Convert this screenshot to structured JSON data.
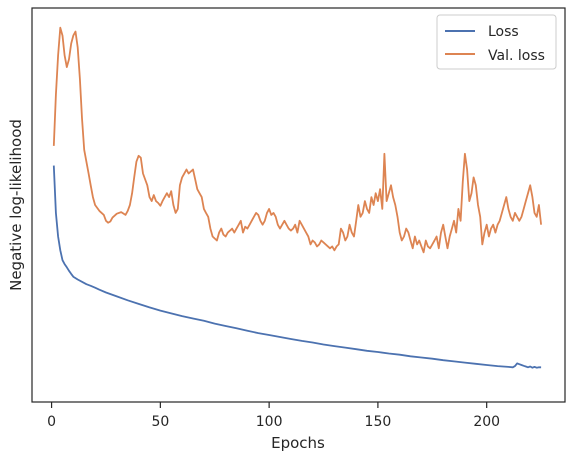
{
  "chart_data": {
    "type": "line",
    "xlabel": "Epochs",
    "ylabel": "Negative log-likelihood",
    "xlim": [
      -9,
      236
    ],
    "ylim": [
      0,
      1
    ],
    "xticks": [
      0,
      50,
      100,
      150,
      200
    ],
    "yticks_shown": false,
    "grid": false,
    "legend_position": "top-right",
    "series": [
      {
        "name": "Loss",
        "color": "#4c72b0",
        "points": [
          [
            1,
            0.6
          ],
          [
            2,
            0.48
          ],
          [
            3,
            0.42
          ],
          [
            4,
            0.385
          ],
          [
            5,
            0.36
          ],
          [
            6,
            0.35
          ],
          [
            7,
            0.342
          ],
          [
            8,
            0.333
          ],
          [
            9,
            0.325
          ],
          [
            10,
            0.318
          ],
          [
            12,
            0.311
          ],
          [
            14,
            0.305
          ],
          [
            16,
            0.299
          ],
          [
            18,
            0.295
          ],
          [
            20,
            0.29
          ],
          [
            22,
            0.285
          ],
          [
            25,
            0.278
          ],
          [
            30,
            0.268
          ],
          [
            35,
            0.258
          ],
          [
            40,
            0.249
          ],
          [
            45,
            0.24
          ],
          [
            50,
            0.232
          ],
          [
            55,
            0.225
          ],
          [
            60,
            0.218
          ],
          [
            65,
            0.212
          ],
          [
            70,
            0.206
          ],
          [
            75,
            0.199
          ],
          [
            80,
            0.193
          ],
          [
            85,
            0.187
          ],
          [
            90,
            0.181
          ],
          [
            95,
            0.175
          ],
          [
            100,
            0.17
          ],
          [
            105,
            0.165
          ],
          [
            110,
            0.16
          ],
          [
            115,
            0.155
          ],
          [
            120,
            0.151
          ],
          [
            125,
            0.146
          ],
          [
            130,
            0.142
          ],
          [
            135,
            0.138
          ],
          [
            140,
            0.134
          ],
          [
            145,
            0.13
          ],
          [
            150,
            0.127
          ],
          [
            155,
            0.123
          ],
          [
            160,
            0.12
          ],
          [
            165,
            0.116
          ],
          [
            170,
            0.113
          ],
          [
            175,
            0.11
          ],
          [
            180,
            0.106
          ],
          [
            185,
            0.103
          ],
          [
            190,
            0.1
          ],
          [
            195,
            0.097
          ],
          [
            200,
            0.094
          ],
          [
            205,
            0.091
          ],
          [
            210,
            0.089
          ],
          [
            212,
            0.088
          ],
          [
            213,
            0.091
          ],
          [
            214,
            0.098
          ],
          [
            215,
            0.096
          ],
          [
            216,
            0.094
          ],
          [
            217,
            0.092
          ],
          [
            218,
            0.09
          ],
          [
            219,
            0.088
          ],
          [
            220,
            0.09
          ],
          [
            221,
            0.087
          ],
          [
            222,
            0.089
          ],
          [
            223,
            0.087
          ],
          [
            224,
            0.088
          ],
          [
            225,
            0.088
          ]
        ]
      },
      {
        "name": "Val. loss",
        "color": "#dd8452",
        "points": [
          [
            1,
            0.65
          ],
          [
            2,
            0.78
          ],
          [
            3,
            0.88
          ],
          [
            4,
            0.95
          ],
          [
            5,
            0.93
          ],
          [
            6,
            0.88
          ],
          [
            7,
            0.85
          ],
          [
            8,
            0.87
          ],
          [
            9,
            0.91
          ],
          [
            10,
            0.93
          ],
          [
            11,
            0.94
          ],
          [
            12,
            0.9
          ],
          [
            13,
            0.82
          ],
          [
            14,
            0.72
          ],
          [
            15,
            0.64
          ],
          [
            16,
            0.61
          ],
          [
            17,
            0.58
          ],
          [
            18,
            0.55
          ],
          [
            19,
            0.52
          ],
          [
            20,
            0.5
          ],
          [
            22,
            0.485
          ],
          [
            24,
            0.475
          ],
          [
            25,
            0.46
          ],
          [
            26,
            0.455
          ],
          [
            27,
            0.458
          ],
          [
            28,
            0.468
          ],
          [
            30,
            0.478
          ],
          [
            32,
            0.482
          ],
          [
            34,
            0.475
          ],
          [
            35,
            0.485
          ],
          [
            36,
            0.5
          ],
          [
            37,
            0.53
          ],
          [
            38,
            0.57
          ],
          [
            39,
            0.61
          ],
          [
            40,
            0.625
          ],
          [
            41,
            0.62
          ],
          [
            42,
            0.58
          ],
          [
            44,
            0.55
          ],
          [
            45,
            0.52
          ],
          [
            46,
            0.51
          ],
          [
            47,
            0.525
          ],
          [
            48,
            0.51
          ],
          [
            49,
            0.505
          ],
          [
            50,
            0.498
          ],
          [
            51,
            0.51
          ],
          [
            52,
            0.52
          ],
          [
            53,
            0.53
          ],
          [
            54,
            0.52
          ],
          [
            55,
            0.535
          ],
          [
            56,
            0.5
          ],
          [
            57,
            0.48
          ],
          [
            58,
            0.49
          ],
          [
            59,
            0.55
          ],
          [
            60,
            0.57
          ],
          [
            61,
            0.58
          ],
          [
            62,
            0.59
          ],
          [
            63,
            0.58
          ],
          [
            64,
            0.585
          ],
          [
            65,
            0.59
          ],
          [
            66,
            0.565
          ],
          [
            67,
            0.54
          ],
          [
            68,
            0.53
          ],
          [
            69,
            0.52
          ],
          [
            70,
            0.49
          ],
          [
            71,
            0.48
          ],
          [
            72,
            0.47
          ],
          [
            73,
            0.44
          ],
          [
            74,
            0.42
          ],
          [
            75,
            0.415
          ],
          [
            76,
            0.41
          ],
          [
            77,
            0.43
          ],
          [
            78,
            0.44
          ],
          [
            79,
            0.425
          ],
          [
            80,
            0.42
          ],
          [
            81,
            0.43
          ],
          [
            82,
            0.435
          ],
          [
            83,
            0.44
          ],
          [
            84,
            0.43
          ],
          [
            85,
            0.44
          ],
          [
            86,
            0.45
          ],
          [
            87,
            0.46
          ],
          [
            88,
            0.43
          ],
          [
            89,
            0.445
          ],
          [
            90,
            0.44
          ],
          [
            91,
            0.45
          ],
          [
            92,
            0.46
          ],
          [
            93,
            0.47
          ],
          [
            94,
            0.48
          ],
          [
            95,
            0.475
          ],
          [
            96,
            0.46
          ],
          [
            97,
            0.45
          ],
          [
            98,
            0.46
          ],
          [
            99,
            0.48
          ],
          [
            100,
            0.49
          ],
          [
            101,
            0.475
          ],
          [
            102,
            0.48
          ],
          [
            103,
            0.47
          ],
          [
            104,
            0.45
          ],
          [
            105,
            0.44
          ],
          [
            106,
            0.45
          ],
          [
            107,
            0.46
          ],
          [
            108,
            0.45
          ],
          [
            109,
            0.44
          ],
          [
            110,
            0.435
          ],
          [
            111,
            0.44
          ],
          [
            112,
            0.45
          ],
          [
            113,
            0.43
          ],
          [
            114,
            0.46
          ],
          [
            115,
            0.45
          ],
          [
            116,
            0.44
          ],
          [
            117,
            0.43
          ],
          [
            118,
            0.42
          ],
          [
            119,
            0.4
          ],
          [
            120,
            0.41
          ],
          [
            121,
            0.405
          ],
          [
            122,
            0.395
          ],
          [
            123,
            0.4
          ],
          [
            124,
            0.41
          ],
          [
            125,
            0.405
          ],
          [
            126,
            0.4
          ],
          [
            127,
            0.395
          ],
          [
            128,
            0.39
          ],
          [
            129,
            0.395
          ],
          [
            130,
            0.385
          ],
          [
            131,
            0.395
          ],
          [
            132,
            0.4
          ],
          [
            133,
            0.44
          ],
          [
            134,
            0.43
          ],
          [
            135,
            0.41
          ],
          [
            136,
            0.42
          ],
          [
            137,
            0.45
          ],
          [
            138,
            0.43
          ],
          [
            139,
            0.42
          ],
          [
            140,
            0.46
          ],
          [
            141,
            0.5
          ],
          [
            142,
            0.47
          ],
          [
            143,
            0.48
          ],
          [
            144,
            0.51
          ],
          [
            145,
            0.49
          ],
          [
            146,
            0.48
          ],
          [
            147,
            0.52
          ],
          [
            148,
            0.5
          ],
          [
            149,
            0.53
          ],
          [
            150,
            0.51
          ],
          [
            151,
            0.54
          ],
          [
            152,
            0.49
          ],
          [
            153,
            0.63
          ],
          [
            154,
            0.51
          ],
          [
            155,
            0.53
          ],
          [
            156,
            0.55
          ],
          [
            157,
            0.52
          ],
          [
            158,
            0.5
          ],
          [
            159,
            0.47
          ],
          [
            160,
            0.43
          ],
          [
            161,
            0.41
          ],
          [
            162,
            0.42
          ],
          [
            163,
            0.44
          ],
          [
            164,
            0.43
          ],
          [
            165,
            0.41
          ],
          [
            166,
            0.39
          ],
          [
            167,
            0.42
          ],
          [
            168,
            0.4
          ],
          [
            169,
            0.41
          ],
          [
            170,
            0.395
          ],
          [
            171,
            0.38
          ],
          [
            172,
            0.41
          ],
          [
            173,
            0.395
          ],
          [
            174,
            0.39
          ],
          [
            175,
            0.4
          ],
          [
            176,
            0.41
          ],
          [
            177,
            0.42
          ],
          [
            178,
            0.39
          ],
          [
            179,
            0.43
          ],
          [
            180,
            0.45
          ],
          [
            181,
            0.42
          ],
          [
            182,
            0.39
          ],
          [
            183,
            0.42
          ],
          [
            184,
            0.44
          ],
          [
            185,
            0.46
          ],
          [
            186,
            0.43
          ],
          [
            187,
            0.49
          ],
          [
            188,
            0.46
          ],
          [
            189,
            0.56
          ],
          [
            190,
            0.63
          ],
          [
            191,
            0.59
          ],
          [
            192,
            0.51
          ],
          [
            193,
            0.53
          ],
          [
            194,
            0.57
          ],
          [
            195,
            0.55
          ],
          [
            196,
            0.5
          ],
          [
            197,
            0.47
          ],
          [
            198,
            0.4
          ],
          [
            199,
            0.43
          ],
          [
            200,
            0.45
          ],
          [
            201,
            0.42
          ],
          [
            202,
            0.44
          ],
          [
            203,
            0.45
          ],
          [
            204,
            0.43
          ],
          [
            205,
            0.45
          ],
          [
            206,
            0.46
          ],
          [
            207,
            0.48
          ],
          [
            208,
            0.5
          ],
          [
            209,
            0.52
          ],
          [
            210,
            0.49
          ],
          [
            211,
            0.47
          ],
          [
            212,
            0.46
          ],
          [
            213,
            0.48
          ],
          [
            214,
            0.47
          ],
          [
            215,
            0.46
          ],
          [
            216,
            0.47
          ],
          [
            217,
            0.49
          ],
          [
            218,
            0.51
          ],
          [
            219,
            0.53
          ],
          [
            220,
            0.55
          ],
          [
            221,
            0.52
          ],
          [
            222,
            0.48
          ],
          [
            223,
            0.47
          ],
          [
            224,
            0.5
          ],
          [
            225,
            0.45
          ]
        ]
      }
    ]
  }
}
